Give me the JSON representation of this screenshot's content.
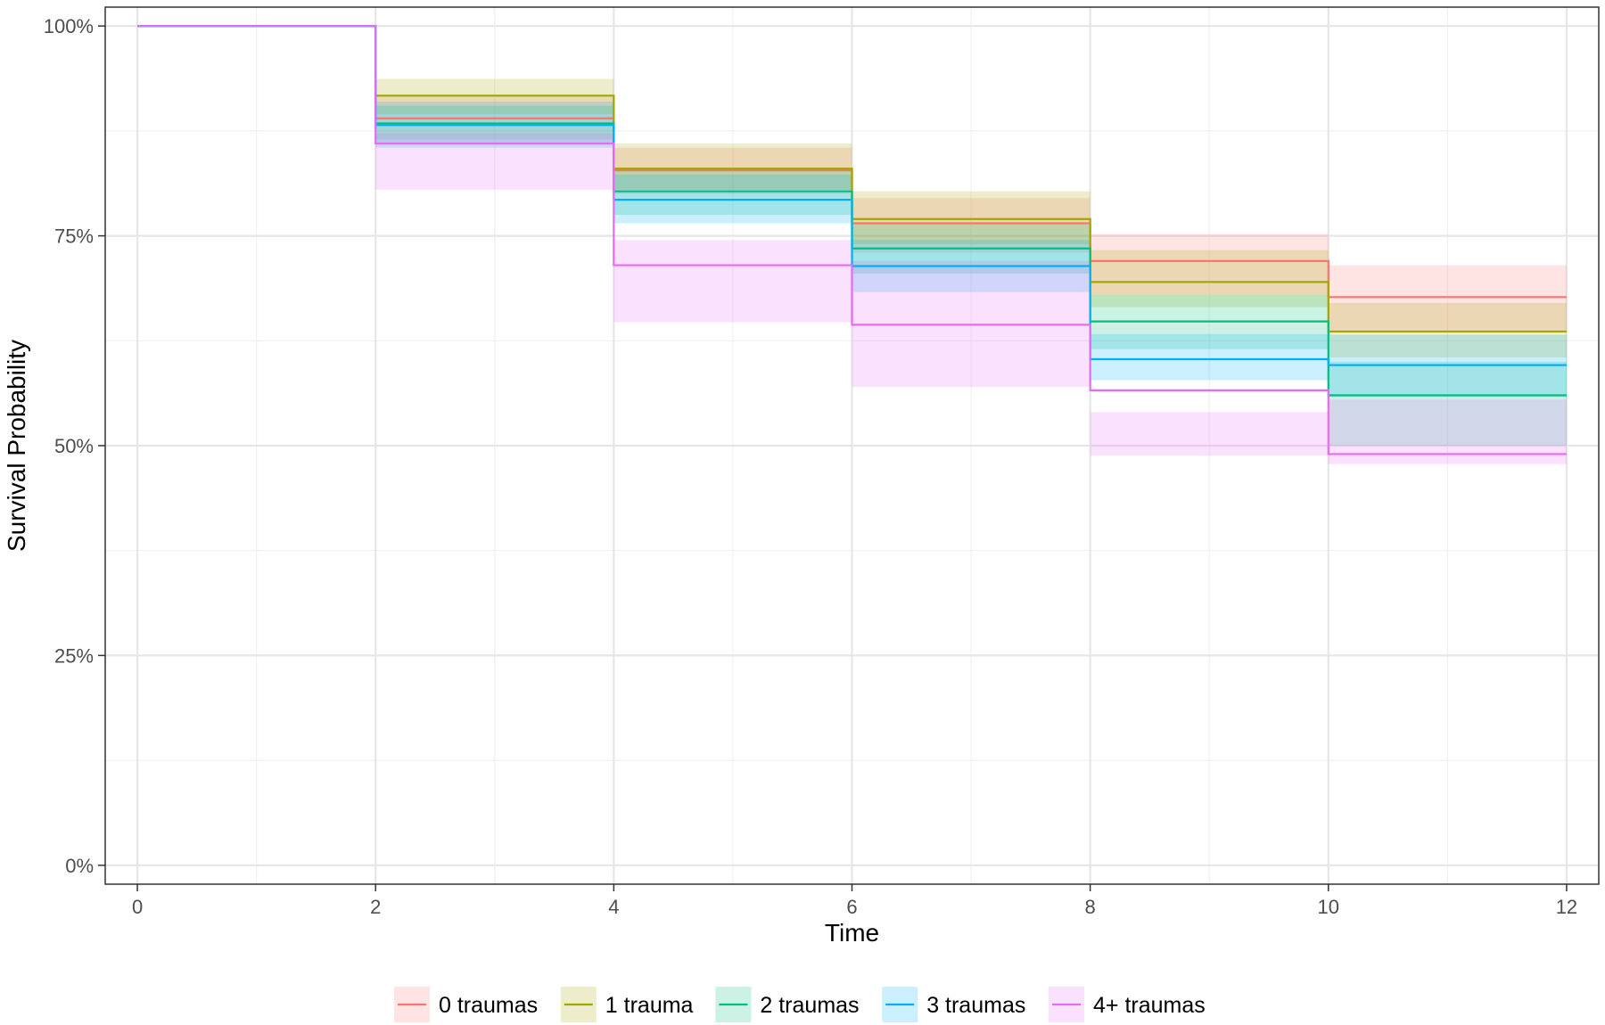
{
  "chart_data": {
    "type": "line",
    "subtype": "step-survival-with-confidence-bands",
    "title": "",
    "xlabel": "Time",
    "ylabel": "Survival Probability",
    "xlim": [
      0,
      12
    ],
    "ylim": [
      0,
      1
    ],
    "x_ticks": [
      0,
      2,
      4,
      6,
      8,
      10,
      12
    ],
    "y_ticks": [
      0,
      0.25,
      0.5,
      0.75,
      1.0
    ],
    "y_tick_labels": [
      "0%",
      "25%",
      "50%",
      "75%",
      "100%"
    ],
    "grid": true,
    "legend_position": "bottom",
    "x": [
      0,
      2,
      4,
      6,
      8,
      10,
      12
    ],
    "series": [
      {
        "name": "0 traumas",
        "color": "#F8766D",
        "values": [
          1.0,
          0.89,
          0.828,
          0.765,
          0.72,
          0.677,
          0.677
        ],
        "lower": [
          1.0,
          0.865,
          0.8,
          0.73,
          0.68,
          0.635,
          0.635
        ],
        "upper": [
          1.0,
          0.915,
          0.855,
          0.795,
          0.752,
          0.715,
          0.715
        ]
      },
      {
        "name": "1 trauma",
        "color": "#A3A500",
        "values": [
          1.0,
          0.917,
          0.83,
          0.77,
          0.695,
          0.636,
          0.636
        ],
        "lower": [
          1.0,
          0.895,
          0.805,
          0.74,
          0.665,
          0.605,
          0.605
        ],
        "upper": [
          1.0,
          0.937,
          0.86,
          0.803,
          0.733,
          0.67,
          0.67
        ]
      },
      {
        "name": "2 traumas",
        "color": "#00BF7D",
        "values": [
          1.0,
          0.884,
          0.803,
          0.735,
          0.648,
          0.56,
          0.56
        ],
        "lower": [
          1.0,
          0.86,
          0.775,
          0.705,
          0.615,
          0.5,
          0.5
        ],
        "upper": [
          1.0,
          0.905,
          0.83,
          0.765,
          0.68,
          0.6,
          0.6
        ]
      },
      {
        "name": "3 traumas",
        "color": "#00B0F6",
        "values": [
          1.0,
          0.882,
          0.793,
          0.714,
          0.603,
          0.596,
          0.596
        ],
        "lower": [
          1.0,
          0.855,
          0.765,
          0.683,
          0.578,
          0.558,
          0.558
        ],
        "upper": [
          1.0,
          0.91,
          0.823,
          0.745,
          0.633,
          0.632,
          0.632
        ]
      },
      {
        "name": "4+ traumas",
        "color": "#E76BF3",
        "values": [
          1.0,
          0.86,
          0.715,
          0.644,
          0.566,
          0.49,
          0.49
        ],
        "lower": [
          1.0,
          0.805,
          0.647,
          0.57,
          0.488,
          0.478,
          0.478
        ],
        "upper": [
          1.0,
          0.872,
          0.745,
          0.72,
          0.54,
          0.555,
          0.555
        ]
      }
    ]
  }
}
